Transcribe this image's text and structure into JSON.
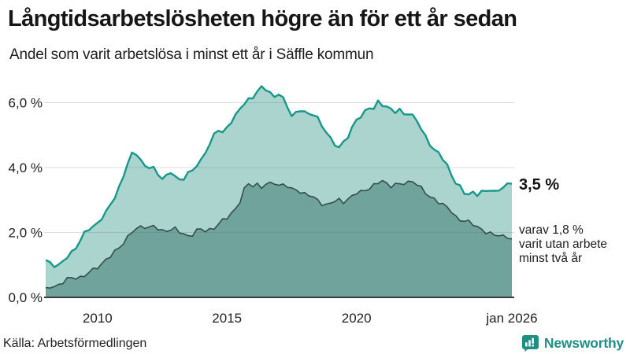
{
  "header": {
    "title": "Långtidsarbetslösheten högre än för ett år sedan",
    "subtitle": "Andel som varit arbetslösa i minst ett år i Säffle kommun"
  },
  "chart_data": {
    "type": "area",
    "title": "Långtidsarbetslösheten högre än för ett år sedan",
    "subtitle": "Andel som varit arbetslösa i minst ett år i Säffle kommun",
    "x_start": "2008-01",
    "x_end": "2026-01",
    "interval_months": 2,
    "ylim": [
      0,
      6.75
    ],
    "grid": "horizontal",
    "yticks": [
      "0,0 %",
      "2,0 %",
      "4,0 %",
      "6,0 %"
    ],
    "ytick_values": [
      0,
      2,
      4,
      6
    ],
    "xticks": [
      "2010",
      "2015",
      "2020",
      "jan 2026"
    ],
    "xtick_years": [
      2010,
      2015,
      2020,
      2026
    ],
    "series": [
      {
        "name": "Andel arbetslösa minst ett år",
        "stroke": "#18988a",
        "fill": "#aad4cd",
        "latest_label": "3,5 %",
        "values": [
          1.15,
          1.08,
          1.0,
          0.97,
          1.08,
          1.25,
          1.4,
          1.55,
          1.75,
          1.95,
          2.1,
          2.2,
          2.3,
          2.45,
          2.6,
          2.85,
          3.1,
          3.4,
          3.75,
          4.1,
          4.4,
          4.45,
          4.25,
          4.05,
          4.0,
          3.95,
          3.8,
          3.7,
          3.75,
          3.85,
          3.7,
          3.6,
          3.7,
          3.85,
          3.9,
          4.05,
          4.2,
          4.5,
          4.75,
          5.0,
          5.15,
          5.05,
          5.25,
          5.45,
          5.6,
          5.8,
          5.95,
          6.1,
          6.2,
          6.35,
          6.45,
          6.4,
          6.3,
          6.2,
          6.3,
          6.1,
          5.85,
          5.6,
          5.7,
          5.8,
          5.7,
          5.6,
          5.65,
          5.55,
          5.3,
          5.1,
          4.85,
          4.7,
          4.65,
          4.8,
          4.95,
          5.2,
          5.45,
          5.6,
          5.75,
          5.85,
          5.8,
          6.0,
          5.95,
          5.9,
          5.8,
          5.7,
          5.75,
          5.65,
          5.7,
          5.6,
          5.45,
          5.15,
          4.95,
          4.75,
          4.55,
          4.45,
          4.25,
          4.05,
          3.8,
          3.55,
          3.4,
          3.2,
          3.15,
          3.25,
          3.2,
          3.25,
          3.25,
          3.3,
          3.25,
          3.35,
          3.4,
          3.45,
          3.5
        ]
      },
      {
        "name": "Andel utan arbete minst två år",
        "stroke": "#324f4a",
        "fill": "#6fa39c",
        "latest_label": "1,8 %",
        "values": [
          0.3,
          0.33,
          0.36,
          0.38,
          0.45,
          0.55,
          0.6,
          0.63,
          0.62,
          0.65,
          0.75,
          0.85,
          0.95,
          1.05,
          1.15,
          1.25,
          1.4,
          1.55,
          1.7,
          1.85,
          2.0,
          2.1,
          2.18,
          2.2,
          2.15,
          2.18,
          2.1,
          2.05,
          2.08,
          2.1,
          2.1,
          2.0,
          1.95,
          1.9,
          1.95,
          2.05,
          2.08,
          2.05,
          2.1,
          2.15,
          2.25,
          2.35,
          2.45,
          2.6,
          2.75,
          2.95,
          3.3,
          3.5,
          3.45,
          3.5,
          3.4,
          3.45,
          3.5,
          3.55,
          3.45,
          3.5,
          3.4,
          3.3,
          3.35,
          3.25,
          3.2,
          3.15,
          3.05,
          3.0,
          2.9,
          2.85,
          2.9,
          2.95,
          3.0,
          2.95,
          3.05,
          3.1,
          3.2,
          3.25,
          3.3,
          3.4,
          3.45,
          3.5,
          3.6,
          3.5,
          3.45,
          3.5,
          3.45,
          3.5,
          3.55,
          3.6,
          3.5,
          3.35,
          3.2,
          3.1,
          3.05,
          2.95,
          2.85,
          2.75,
          2.65,
          2.5,
          2.4,
          2.35,
          2.3,
          2.25,
          2.2,
          2.1,
          2.0,
          1.95,
          1.9,
          1.95,
          1.9,
          1.85,
          1.8
        ]
      }
    ],
    "annotations": {
      "latest_value": "3,5 %",
      "secondary_line1": "varav 1,8 %",
      "secondary_line2": "varit utan arbete",
      "secondary_line3": "minst två år"
    }
  },
  "footer": {
    "source": "Källa: Arbetsförmedlingen",
    "brand": "Newsworthy"
  },
  "colors": {
    "series1_stroke": "#18988a",
    "series1_fill": "#aad4cd",
    "series2_stroke": "#324f4a",
    "series2_fill": "#6fa39c",
    "gridline": "#6b6b6b",
    "axis": "#3a3a3a",
    "text": "#1a1a1a",
    "brand_teal": "#1e8f82"
  }
}
